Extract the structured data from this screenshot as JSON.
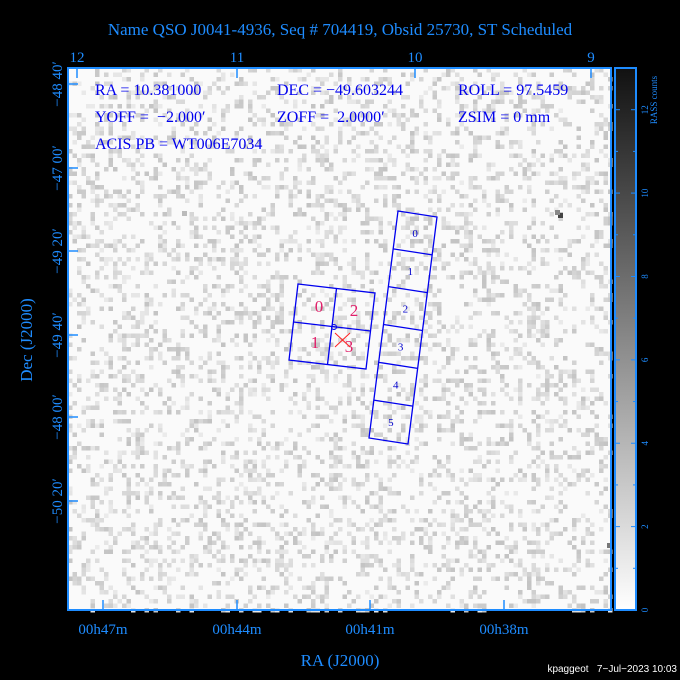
{
  "chart_data": {
    "type": "heatmap",
    "title": "Name QSO J0041-4936, Seq # 704419, Obsid 25730, ST Scheduled",
    "xlabel": "RA (J2000)",
    "ylabel": "Dec (J2000)",
    "x_ticks_bottom": [
      "00h47m",
      "00h44m",
      "00h41m",
      "00h38m"
    ],
    "x_ticks_top": [
      "12",
      "11",
      "10",
      "9"
    ],
    "y_ticks": [
      "−48 40′",
      "−47 00′",
      "−49 20′",
      "−49 40′",
      "−48 00′",
      "−50 20′"
    ],
    "colorbar": {
      "label": "RASS counts",
      "ticks": [
        "0",
        "2",
        "4",
        "6",
        "8",
        "10",
        "12"
      ],
      "range": [
        0,
        13
      ],
      "colormap": "grey-reversed"
    },
    "info_lines": [
      [
        "RA = 10.381000",
        "DEC = −49.603244",
        "ROLL = 97.5459"
      ],
      [
        "YOFF =  −2.000′",
        "ZOFF =  2.0000′",
        "ZSIM = 0 mm"
      ],
      [
        "ACIS PB = WT006E7034"
      ]
    ],
    "acis_i_chips": [
      "0",
      "2",
      "1",
      "3"
    ],
    "acis_s_chips": [
      "0",
      "1",
      "2",
      "3",
      "4",
      "5"
    ],
    "colors": {
      "axis": "#1e8cff",
      "chips": "#0000ee",
      "chip_labels_i": "#e0206a",
      "aimpoint": "#ff0000"
    }
  },
  "footer": "kpaggeot   7−Jul−2023 10:03"
}
